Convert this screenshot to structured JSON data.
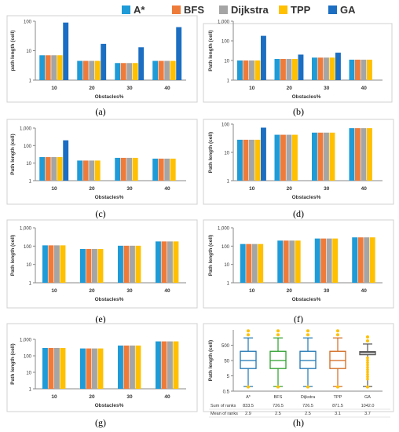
{
  "legend": [
    {
      "name": "A*",
      "color": "#1f9bd7"
    },
    {
      "name": "BFS",
      "color": "#ef7b3a"
    },
    {
      "name": "Dijkstra",
      "color": "#a5a5a5"
    },
    {
      "name": "TPP",
      "color": "#ffc000"
    },
    {
      "name": "GA",
      "color": "#1b6ec2"
    }
  ],
  "chart_data": [
    {
      "type": "bar",
      "panel_label": "(a)",
      "ylabel": "path length (cell)",
      "xlabel": "Obstacles%",
      "categories": [
        "10",
        "20",
        "30",
        "40"
      ],
      "y_scale": "log",
      "ylim": [
        1,
        100
      ],
      "y_ticks": [
        "1",
        "10",
        "100"
      ],
      "series": [
        {
          "name": "A*",
          "values": [
            7,
            4.5,
            3.8,
            4.5
          ]
        },
        {
          "name": "BFS",
          "values": [
            7,
            4.5,
            3.8,
            4.5
          ]
        },
        {
          "name": "Dijkstra",
          "values": [
            7,
            4.5,
            3.8,
            4.5
          ]
        },
        {
          "name": "TPP",
          "values": [
            7,
            4.5,
            3.8,
            4.5
          ]
        },
        {
          "name": "GA",
          "values": [
            90,
            17,
            13,
            63
          ]
        }
      ]
    },
    {
      "type": "bar",
      "panel_label": "(b)",
      "ylabel": "Path length (cell)",
      "xlabel": "Obstacles%",
      "categories": [
        "10",
        "20",
        "30",
        "40"
      ],
      "y_scale": "log",
      "ylim": [
        1,
        1000
      ],
      "y_ticks": [
        "1",
        "10",
        "100",
        "1,000"
      ],
      "series": [
        {
          "name": "A*",
          "values": [
            10,
            12,
            14,
            11
          ]
        },
        {
          "name": "BFS",
          "values": [
            10,
            12,
            14,
            11
          ]
        },
        {
          "name": "Dijkstra",
          "values": [
            10,
            12,
            14,
            11
          ]
        },
        {
          "name": "TPP",
          "values": [
            10,
            12,
            14,
            11
          ]
        },
        {
          "name": "GA",
          "values": [
            180,
            20,
            25,
            null
          ]
        }
      ]
    },
    {
      "type": "bar",
      "panel_label": "(c)",
      "ylabel": "Path length (cell)",
      "xlabel": "Obstacles%",
      "categories": [
        "10",
        "20",
        "30",
        "40"
      ],
      "y_scale": "log",
      "ylim": [
        1,
        1000
      ],
      "y_ticks": [
        "1",
        "10",
        "100",
        "1,000"
      ],
      "series": [
        {
          "name": "A*",
          "values": [
            22,
            14,
            20,
            18
          ]
        },
        {
          "name": "BFS",
          "values": [
            22,
            14,
            20,
            18
          ]
        },
        {
          "name": "Dijkstra",
          "values": [
            22,
            14,
            20,
            18
          ]
        },
        {
          "name": "TPP",
          "values": [
            22,
            14,
            20,
            18
          ]
        },
        {
          "name": "GA",
          "values": [
            200,
            null,
            null,
            null
          ]
        }
      ]
    },
    {
      "type": "bar",
      "panel_label": "(d)",
      "ylabel": "Path length (cell)",
      "xlabel": "Obstacles%",
      "categories": [
        "10",
        "20",
        "30",
        "40"
      ],
      "y_scale": "log",
      "ylim": [
        1,
        100
      ],
      "y_ticks": [
        "1",
        "10",
        "100"
      ],
      "series": [
        {
          "name": "A*",
          "values": [
            28,
            42,
            50,
            72
          ]
        },
        {
          "name": "BFS",
          "values": [
            28,
            42,
            50,
            72
          ]
        },
        {
          "name": "Dijkstra",
          "values": [
            28,
            42,
            50,
            72
          ]
        },
        {
          "name": "TPP",
          "values": [
            28,
            42,
            50,
            72
          ]
        },
        {
          "name": "GA",
          "values": [
            75,
            null,
            null,
            null
          ]
        }
      ]
    },
    {
      "type": "bar",
      "panel_label": "(e)",
      "ylabel": "Path length (cell)",
      "xlabel": "Obstacles%",
      "categories": [
        "10",
        "20",
        "30",
        "40"
      ],
      "y_scale": "log",
      "ylim": [
        1,
        1000
      ],
      "y_ticks": [
        "1",
        "10",
        "100",
        "1,000"
      ],
      "series": [
        {
          "name": "A*",
          "values": [
            110,
            70,
            105,
            180
          ]
        },
        {
          "name": "BFS",
          "values": [
            110,
            70,
            105,
            180
          ]
        },
        {
          "name": "Dijkstra",
          "values": [
            110,
            70,
            105,
            180
          ]
        },
        {
          "name": "TPP",
          "values": [
            110,
            70,
            105,
            180
          ]
        }
      ]
    },
    {
      "type": "bar",
      "panel_label": "(f)",
      "ylabel": "Path length (cell)",
      "xlabel": "Obstacles%",
      "categories": [
        "10",
        "20",
        "30",
        "40"
      ],
      "y_scale": "log",
      "ylim": [
        1,
        1000
      ],
      "y_ticks": [
        "1",
        "10",
        "100",
        "1,000"
      ],
      "series": [
        {
          "name": "A*",
          "values": [
            130,
            200,
            260,
            300
          ]
        },
        {
          "name": "BFS",
          "values": [
            130,
            200,
            260,
            300
          ]
        },
        {
          "name": "Dijkstra",
          "values": [
            130,
            200,
            260,
            300
          ]
        },
        {
          "name": "TPP",
          "values": [
            130,
            200,
            260,
            300
          ]
        }
      ]
    },
    {
      "type": "bar",
      "panel_label": "(g)",
      "ylabel": "Path length (cell)",
      "xlabel": "Obstacles%",
      "categories": [
        "10",
        "20",
        "30",
        "40"
      ],
      "y_scale": "log",
      "ylim": [
        1,
        1000
      ],
      "y_ticks": [
        "1",
        "10",
        "100",
        "1,000"
      ],
      "series": [
        {
          "name": "A*",
          "values": [
            300,
            280,
            420,
            750
          ]
        },
        {
          "name": "BFS",
          "values": [
            300,
            280,
            420,
            750
          ]
        },
        {
          "name": "Dijkstra",
          "values": [
            300,
            280,
            420,
            750
          ]
        },
        {
          "name": "TPP",
          "values": [
            300,
            280,
            420,
            750
          ]
        }
      ]
    },
    {
      "type": "boxplot",
      "panel_label": "(h)",
      "ylabel": "Path length (cell)",
      "y_scale": "log",
      "ylim": [
        0.5,
        5000
      ],
      "y_ticks": [
        "0.5",
        "5",
        "50",
        "500"
      ],
      "categories": [
        "A*",
        "BFS",
        "Dijkstra",
        "TPP",
        "GA"
      ],
      "colors": [
        "#1f77b4",
        "#2ca02c",
        "#1f77b4",
        "#d2691e",
        "#555555"
      ],
      "boxes": [
        {
          "whisker_low": 1,
          "q1": 15,
          "median": 50,
          "q3": 200,
          "whisker_high": 1500
        },
        {
          "whisker_low": 1,
          "q1": 15,
          "median": 50,
          "q3": 200,
          "whisker_high": 1500
        },
        {
          "whisker_low": 1,
          "q1": 15,
          "median": 50,
          "q3": 200,
          "whisker_high": 1500
        },
        {
          "whisker_low": 1,
          "q1": 15,
          "median": 50,
          "q3": 200,
          "whisker_high": 1500
        },
        {
          "whisker_low": 1,
          "q1": 120,
          "median": 160,
          "q3": 190,
          "whisker_high": 600
        }
      ],
      "table": {
        "rows": [
          {
            "label": "Sum of ranks",
            "values": [
              "833.5",
              "726.5",
              "726.5",
              "871.5",
              "1042.0"
            ]
          },
          {
            "label": "Mean of ranks",
            "values": [
              "2.9",
              "2.5",
              "2.5",
              "3.1",
              "3.7"
            ]
          }
        ]
      }
    }
  ]
}
